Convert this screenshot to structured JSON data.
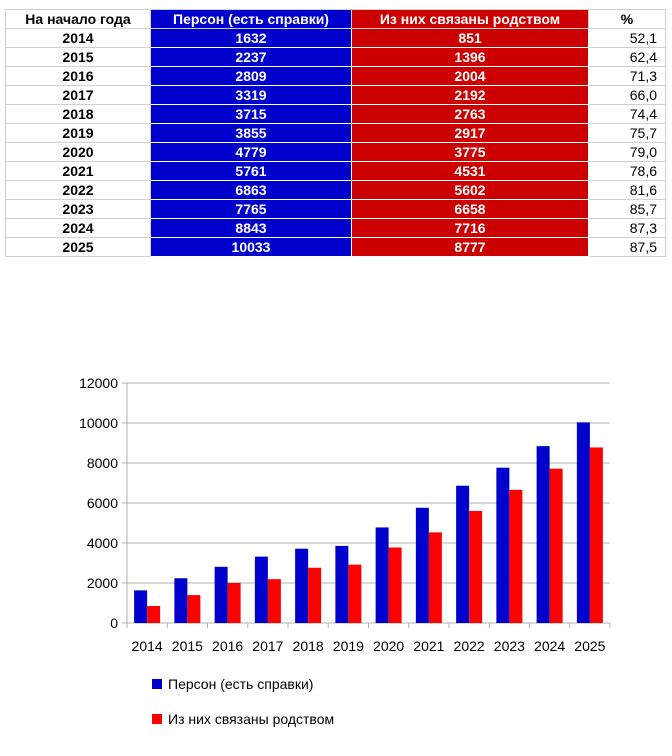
{
  "table": {
    "headers": {
      "year": "На начало года",
      "persons": "Персон (есть справки)",
      "related": "Из них связаны родством",
      "pct": "%"
    },
    "rows": [
      {
        "year": "2014",
        "persons": "1632",
        "related": "851",
        "pct": "52,1"
      },
      {
        "year": "2015",
        "persons": "2237",
        "related": "1396",
        "pct": "62,4"
      },
      {
        "year": "2016",
        "persons": "2809",
        "related": "2004",
        "pct": "71,3"
      },
      {
        "year": "2017",
        "persons": "3319",
        "related": "2192",
        "pct": "66,0"
      },
      {
        "year": "2018",
        "persons": "3715",
        "related": "2763",
        "pct": "74,4"
      },
      {
        "year": "2019",
        "persons": "3855",
        "related": "2917",
        "pct": "75,7"
      },
      {
        "year": "2020",
        "persons": "4779",
        "related": "3775",
        "pct": "79,0"
      },
      {
        "year": "2021",
        "persons": "5761",
        "related": "4531",
        "pct": "78,6"
      },
      {
        "year": "2022",
        "persons": "6863",
        "related": "5602",
        "pct": "81,6"
      },
      {
        "year": "2023",
        "persons": "7765",
        "related": "6658",
        "pct": "85,7"
      },
      {
        "year": "2024",
        "persons": "8843",
        "related": "7716",
        "pct": "87,3"
      },
      {
        "year": "2025",
        "persons": "10033",
        "related": "8777",
        "pct": "87,5"
      }
    ]
  },
  "chart_data": {
    "type": "bar",
    "title": "",
    "xlabel": "",
    "ylabel": "",
    "categories": [
      "2014",
      "2015",
      "2016",
      "2017",
      "2018",
      "2019",
      "2020",
      "2021",
      "2022",
      "2023",
      "2024",
      "2025"
    ],
    "series": [
      {
        "name": "Персон (есть справки)",
        "color": "#0000cc",
        "values": [
          1632,
          2237,
          2809,
          3319,
          3715,
          3855,
          4779,
          5761,
          6863,
          7765,
          8843,
          10033
        ]
      },
      {
        "name": "Из них связаны родством",
        "color": "#ff0000",
        "values": [
          851,
          1396,
          2004,
          2192,
          2763,
          2917,
          3775,
          4531,
          5602,
          6658,
          7716,
          8777
        ]
      }
    ],
    "ylim": [
      0,
      12000
    ],
    "yticks": [
      0,
      2000,
      4000,
      6000,
      8000,
      10000,
      12000
    ],
    "grid": true,
    "legend_position": "bottom"
  }
}
